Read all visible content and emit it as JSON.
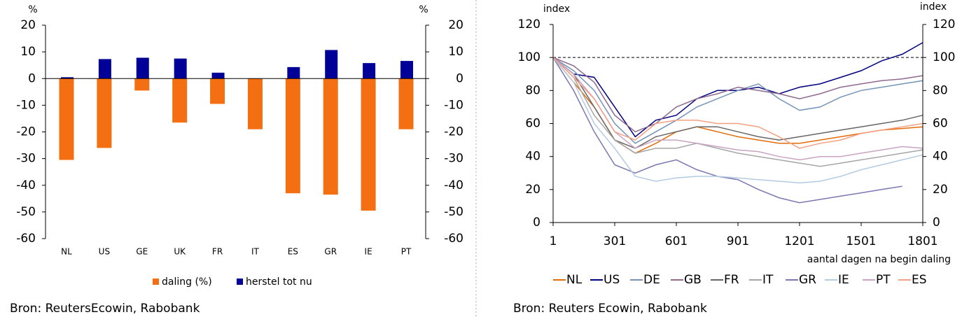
{
  "chart_data": [
    {
      "type": "bar",
      "y_label": "%",
      "y2_label": "%",
      "categories": [
        "NL",
        "US",
        "GE",
        "UK",
        "FR",
        "IT",
        "ES",
        "GR",
        "IE",
        "PT"
      ],
      "series": [
        {
          "name": "daling (%)",
          "color": "#f36f12",
          "values": [
            -30.5,
            -26,
            -4.5,
            -16.5,
            -9.5,
            -19,
            -43,
            -43.5,
            -49.5,
            -19
          ]
        },
        {
          "name": "herstel tot nu",
          "color": "#000099",
          "values": [
            0.5,
            7.3,
            7.8,
            7.5,
            2.2,
            0,
            4.3,
            10.7,
            5.8,
            6.6
          ]
        }
      ],
      "ylim": [
        -60,
        20
      ],
      "yticks": [
        20,
        10,
        0,
        -10,
        -20,
        -30,
        -40,
        -50,
        -60
      ],
      "source": "Bron:  ReutersEcowin, Rabobank"
    },
    {
      "type": "line",
      "y_label": "index",
      "y2_label": "index",
      "x_label": "aantal dagen na begin daling",
      "x": [
        1,
        101,
        201,
        301,
        401,
        501,
        601,
        701,
        801,
        901,
        1001,
        1101,
        1201,
        1301,
        1401,
        1501,
        1601,
        1701,
        1801
      ],
      "xlim": [
        1,
        1801
      ],
      "xticks": [
        1,
        301,
        601,
        901,
        1201,
        1501,
        1801
      ],
      "ylim": [
        0,
        120
      ],
      "yticks": [
        0,
        20,
        40,
        60,
        80,
        100,
        120
      ],
      "reference_line": 100,
      "series": [
        {
          "name": "NL",
          "color": "#e36c09",
          "values": [
            100,
            85,
            70,
            50,
            42,
            48,
            55,
            58,
            55,
            52,
            50,
            48,
            48,
            50,
            52,
            54,
            56,
            57,
            58
          ]
        },
        {
          "name": "US",
          "color": "#000080",
          "values": [
            100,
            90,
            88,
            70,
            52,
            62,
            65,
            75,
            80,
            80,
            82,
            78,
            82,
            84,
            88,
            92,
            98,
            102,
            109
          ]
        },
        {
          "name": "DE",
          "color": "#7394b8",
          "values": [
            100,
            92,
            80,
            60,
            48,
            55,
            62,
            70,
            75,
            80,
            84,
            75,
            68,
            70,
            76,
            80,
            82,
            84,
            86
          ]
        },
        {
          "name": "GB",
          "color": "#8e6a8e",
          "values": [
            100,
            95,
            85,
            65,
            55,
            60,
            70,
            75,
            78,
            82,
            80,
            78,
            75,
            78,
            82,
            84,
            86,
            87,
            89
          ]
        },
        {
          "name": "FR",
          "color": "#666666",
          "values": [
            100,
            90,
            70,
            50,
            45,
            52,
            55,
            58,
            58,
            55,
            52,
            50,
            52,
            54,
            56,
            58,
            60,
            62,
            65
          ]
        },
        {
          "name": "IT",
          "color": "#a6a6a6",
          "values": [
            100,
            88,
            65,
            50,
            42,
            45,
            45,
            48,
            45,
            42,
            40,
            38,
            36,
            34,
            36,
            38,
            40,
            42,
            44
          ]
        },
        {
          "name": "GR",
          "color": "#7a78b0",
          "values": [
            100,
            80,
            55,
            35,
            30,
            35,
            38,
            32,
            28,
            26,
            20,
            15,
            12,
            14,
            16,
            18,
            20,
            22,
            null
          ]
        },
        {
          "name": "IE",
          "color": "#b4cbe2",
          "values": [
            100,
            85,
            60,
            45,
            28,
            25,
            27,
            28,
            28,
            27,
            26,
            25,
            24,
            25,
            28,
            32,
            35,
            38,
            41
          ]
        },
        {
          "name": "PT",
          "color": "#c9a4c2",
          "values": [
            100,
            90,
            75,
            55,
            45,
            50,
            50,
            48,
            46,
            44,
            43,
            40,
            38,
            40,
            40,
            42,
            44,
            46,
            45
          ]
        },
        {
          "name": "ES",
          "color": "#f4a082",
          "values": [
            100,
            88,
            75,
            55,
            50,
            60,
            62,
            62,
            60,
            60,
            58,
            52,
            45,
            48,
            50,
            54,
            56,
            58,
            60
          ]
        }
      ],
      "source": "Bron: Reuters Ecowin, Rabobank"
    }
  ]
}
